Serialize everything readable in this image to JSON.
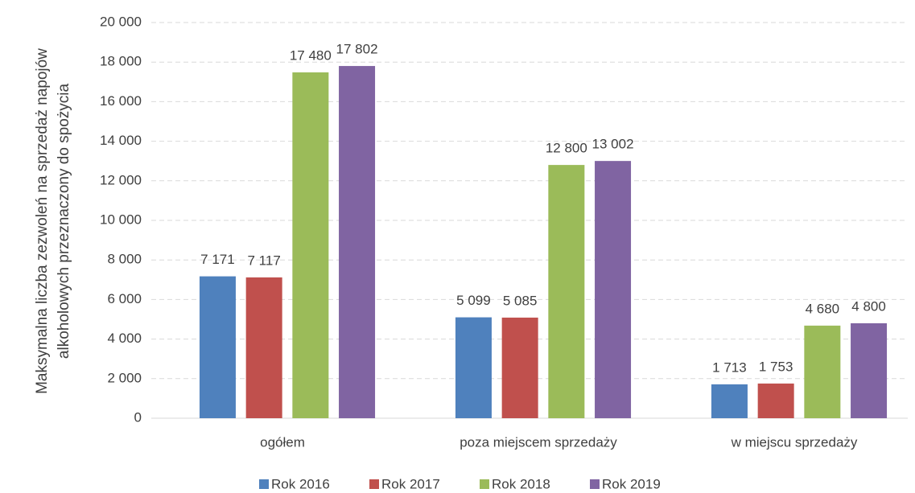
{
  "chart_data": {
    "type": "bar",
    "ylabel": "Maksymalna liczba zezwoleń na sprzedaż napojów alkoholowych przeznaczony do spożycia",
    "categories": [
      "ogółem",
      "poza miejscem sprzedaży",
      "w miejscu sprzedaży"
    ],
    "series": [
      {
        "name": "Rok 2016",
        "color": "#4f81bd",
        "values": [
          7171,
          5099,
          1713
        ],
        "value_labels": [
          "7 171",
          "5 099",
          "1 713"
        ]
      },
      {
        "name": "Rok 2017",
        "color": "#c0504d",
        "values": [
          7117,
          5085,
          1753
        ],
        "value_labels": [
          "7 117",
          "5 085",
          "1 753"
        ]
      },
      {
        "name": "Rok 2018",
        "color": "#9bbb59",
        "values": [
          17480,
          12800,
          4680
        ],
        "value_labels": [
          "17 480",
          "12 800",
          "4 680"
        ]
      },
      {
        "name": "Rok 2019",
        "color": "#8064a2",
        "values": [
          17802,
          13002,
          4800
        ],
        "value_labels": [
          "17 802",
          "13 002",
          "4 800"
        ]
      }
    ],
    "ylim": [
      0,
      20000
    ],
    "yticks": [
      0,
      {
        "value": 2000,
        "label": "2 000"
      },
      {
        "value": 4000,
        "label": "4 000"
      },
      {
        "value": 6000,
        "label": "6 000"
      },
      {
        "value": 8000,
        "label": "8 000"
      },
      {
        "value": 10000,
        "label": "10 000"
      },
      {
        "value": 12000,
        "label": "12 000"
      },
      {
        "value": 14000,
        "label": "14 000"
      },
      {
        "value": 16000,
        "label": "16 000"
      },
      {
        "value": 18000,
        "label": "18 000"
      },
      {
        "value": 20000,
        "label": "20 000"
      }
    ],
    "grid": true,
    "legend": "bottom"
  }
}
